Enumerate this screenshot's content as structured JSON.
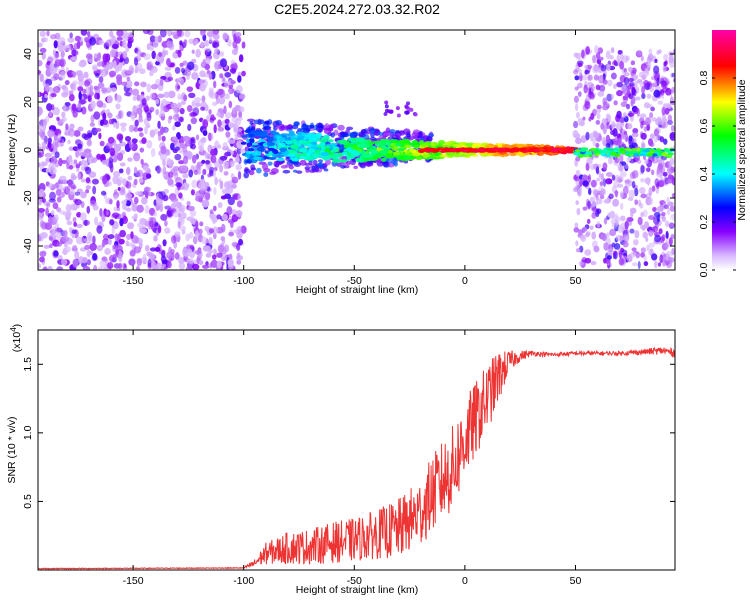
{
  "title": "C2E5.2024.272.03.32.R02",
  "chart_data": [
    {
      "type": "heatmap",
      "xlabel": "Height of straight line (km)",
      "ylabel": "Frequency (Hz)",
      "xlim": [
        -193,
        95
      ],
      "ylim": [
        -50,
        50
      ],
      "xticks": [
        -150,
        -100,
        -50,
        0,
        50
      ],
      "yticks": [
        -40,
        -20,
        0,
        20,
        40
      ],
      "colorbar": {
        "label": "Normalized spectral amplitude",
        "range": [
          0,
          1
        ],
        "ticks": [
          "0.0",
          "0.2",
          "0.4",
          "0.6",
          "0.8"
        ],
        "colormap": [
          "#ffffff",
          "#8800ff",
          "#0000ff",
          "#00ffff",
          "#00ff00",
          "#ffff00",
          "#ff0000",
          "#ff00aa"
        ]
      },
      "regions": [
        {
          "x": [
            -193,
            -100
          ],
          "y": [
            -50,
            50
          ],
          "amplitude": 0.15
        },
        {
          "x": [
            -100,
            50
          ],
          "center_freq_hz": 0,
          "amplitude_rising_to": 1.0
        },
        {
          "x": [
            50,
            95
          ],
          "y": [
            -50,
            50
          ],
          "amplitude": 0.2
        }
      ]
    },
    {
      "type": "line",
      "xlabel": "Height of straight line (km)",
      "ylabel": "SNR (10 * v/v)",
      "multiplier_label": "(x10",
      "multiplier_exp": "4",
      "xlim": [
        -193,
        95
      ],
      "ylim": [
        0,
        1.75
      ],
      "xticks": [
        -150,
        -100,
        -50,
        0,
        50
      ],
      "yticks": [
        "0.5",
        "1.0",
        "1.5"
      ],
      "line_color": "#ee3333",
      "anchors": {
        "x": [
          -193,
          -100,
          -95,
          -90,
          -80,
          -70,
          -60,
          -50,
          -40,
          -30,
          -20,
          -15,
          -10,
          -5,
          0,
          5,
          10,
          15,
          20,
          25,
          30,
          40,
          50,
          60,
          70,
          80,
          90,
          95
        ],
        "y": [
          0.01,
          0.015,
          0.05,
          0.12,
          0.16,
          0.17,
          0.2,
          0.22,
          0.26,
          0.3,
          0.42,
          0.55,
          0.65,
          0.75,
          0.95,
          1.1,
          1.25,
          1.4,
          1.52,
          1.56,
          1.58,
          1.57,
          1.58,
          1.58,
          1.58,
          1.59,
          1.6,
          1.58
        ],
        "noise": [
          0.003,
          0.003,
          0.03,
          0.08,
          0.12,
          0.13,
          0.15,
          0.16,
          0.18,
          0.22,
          0.25,
          0.28,
          0.3,
          0.32,
          0.3,
          0.28,
          0.25,
          0.2,
          0.08,
          0.04,
          0.02,
          0.015,
          0.015,
          0.015,
          0.015,
          0.02,
          0.03,
          0.03
        ]
      }
    }
  ]
}
